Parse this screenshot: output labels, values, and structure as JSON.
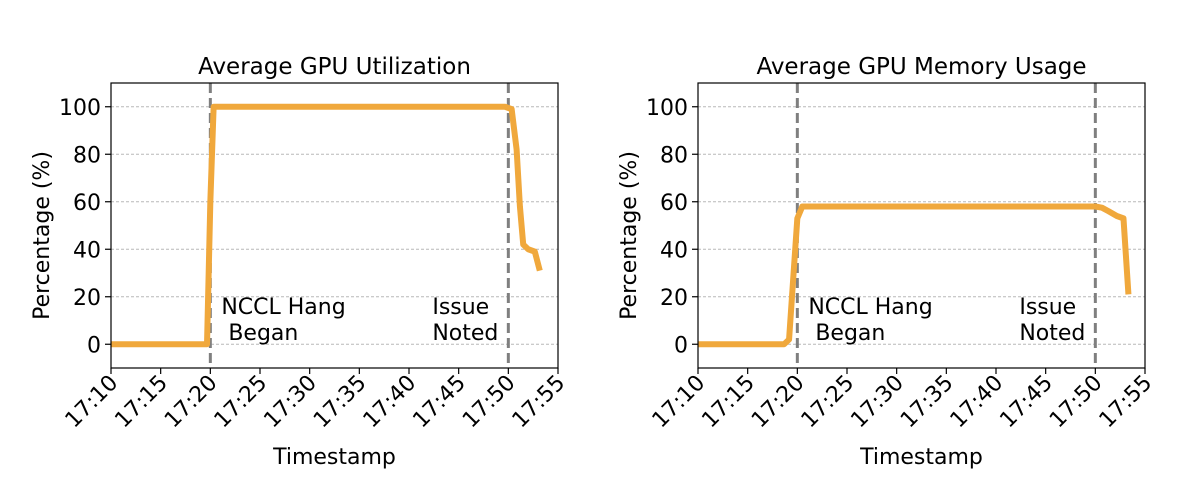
{
  "chart_data": [
    {
      "type": "line",
      "title": "Average GPU Utilization",
      "xlabel": "Timestamp",
      "ylabel": "Percentage (%)",
      "ylim": [
        -10,
        110
      ],
      "xlim": [
        "17:10",
        "17:55"
      ],
      "x_ticks": [
        "17:10",
        "17:15",
        "17:20",
        "17:25",
        "17:30",
        "17:35",
        "17:40",
        "17:45",
        "17:50",
        "17:55"
      ],
      "y_ticks": [
        0,
        20,
        40,
        60,
        80,
        100
      ],
      "grid": "horizontal dotted",
      "color": "#f0a83c",
      "series": [
        {
          "x": [
            "17:10",
            "17:19:40",
            "17:20",
            "17:20:20",
            "17:25",
            "17:30",
            "17:35",
            "17:40",
            "17:45",
            "17:49:40",
            "17:50:20",
            "17:50:50",
            "17:51:10",
            "17:51:30",
            "17:52",
            "17:52:40",
            "17:53:10"
          ],
          "values": [
            0,
            0,
            60,
            100,
            100,
            100,
            100,
            100,
            100,
            100,
            99,
            82,
            58,
            42,
            40,
            39,
            31
          ]
        }
      ],
      "vlines": [
        {
          "x": "17:20",
          "label_lines": [
            "NCCL Hang",
            " Began"
          ]
        },
        {
          "x": "17:50",
          "label_lines": [
            "Issue",
            "Noted"
          ]
        }
      ]
    },
    {
      "type": "line",
      "title": "Average GPU Memory Usage",
      "xlabel": "Timestamp",
      "ylabel": "Percentage (%)",
      "ylim": [
        -10,
        110
      ],
      "xlim": [
        "17:10",
        "17:55"
      ],
      "x_ticks": [
        "17:10",
        "17:15",
        "17:20",
        "17:25",
        "17:30",
        "17:35",
        "17:40",
        "17:45",
        "17:50",
        "17:55"
      ],
      "y_ticks": [
        0,
        20,
        40,
        60,
        80,
        100
      ],
      "grid": "horizontal dotted",
      "color": "#f0a83c",
      "series": [
        {
          "x": [
            "17:10",
            "17:18:40",
            "17:19:10",
            "17:20",
            "17:20:30",
            "17:25",
            "17:30",
            "17:35",
            "17:40",
            "17:45",
            "17:50",
            "17:50:40",
            "17:51:20",
            "17:52:10",
            "17:52:50",
            "17:53:20"
          ],
          "values": [
            0,
            0,
            2,
            53,
            58,
            58,
            58,
            58,
            58,
            58,
            58,
            57.5,
            56,
            54,
            53,
            21
          ]
        }
      ],
      "vlines": [
        {
          "x": "17:20",
          "label_lines": [
            "NCCL Hang",
            " Began"
          ]
        },
        {
          "x": "17:50",
          "label_lines": [
            "Issue",
            "Noted"
          ]
        }
      ]
    }
  ]
}
